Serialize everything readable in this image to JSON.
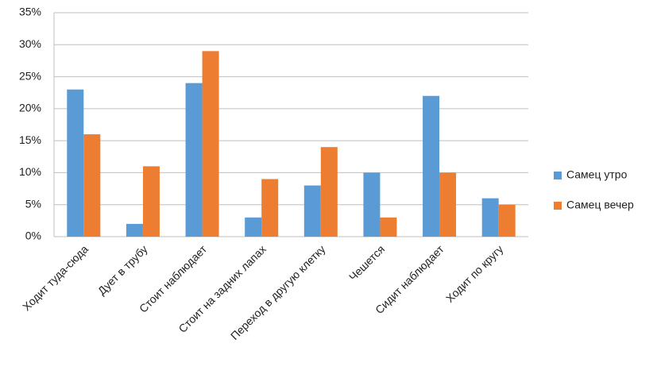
{
  "chart_data": {
    "type": "bar",
    "categories": [
      "Ходит туда-сюда",
      "Дует в трубу",
      "Стоит наблюдает",
      "Стоит на задних лапах",
      "Переход в другую клетку",
      "Чешется",
      "Сидит наблюдает",
      "Ходит по кругу"
    ],
    "series": [
      {
        "name": "Самец утро",
        "color": "#5b9bd5",
        "values": [
          23,
          2,
          24,
          3,
          8,
          10,
          22,
          6
        ]
      },
      {
        "name": "Самец вечер",
        "color": "#ed7d31",
        "values": [
          16,
          11,
          29,
          9,
          14,
          3,
          10,
          5
        ]
      }
    ],
    "ylim": [
      0,
      35
    ],
    "yticks": [
      {
        "value": 0,
        "label": "0%"
      },
      {
        "value": 5,
        "label": "5%"
      },
      {
        "value": 10,
        "label": "10%"
      },
      {
        "value": 15,
        "label": "15%"
      },
      {
        "value": 20,
        "label": "20%"
      },
      {
        "value": 25,
        "label": "25%"
      },
      {
        "value": 30,
        "label": "30%"
      },
      {
        "value": 35,
        "label": "35%"
      }
    ],
    "grid": true,
    "legend": "right"
  }
}
